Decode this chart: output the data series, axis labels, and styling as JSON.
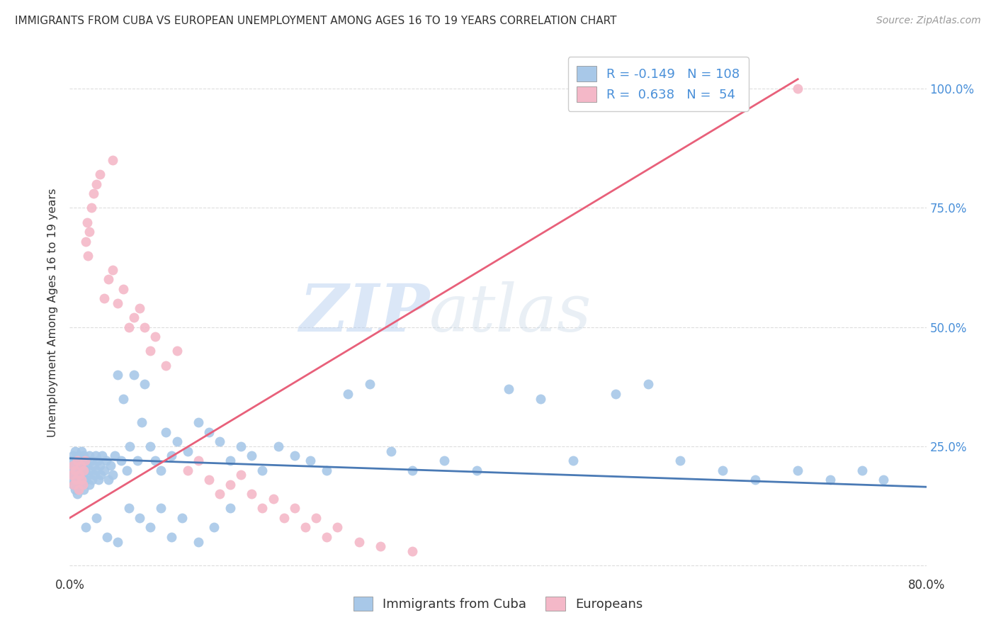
{
  "title": "IMMIGRANTS FROM CUBA VS EUROPEAN UNEMPLOYMENT AMONG AGES 16 TO 19 YEARS CORRELATION CHART",
  "source": "Source: ZipAtlas.com",
  "ylabel": "Unemployment Among Ages 16 to 19 years",
  "xlim": [
    0.0,
    0.8
  ],
  "ylim": [
    -0.02,
    1.08
  ],
  "legend_labels": [
    "Immigrants from Cuba",
    "Europeans"
  ],
  "legend_r_cuba": "-0.149",
  "legend_n_cuba": "108",
  "legend_r_euro": "0.638",
  "legend_n_euro": "54",
  "color_cuba": "#a8c8e8",
  "color_euro": "#f4b8c8",
  "color_line_cuba": "#4a7ab5",
  "color_line_euro": "#e8607a",
  "color_text_blue": "#4a90d9",
  "background_color": "#ffffff",
  "grid_color": "#dddddd",
  "watermark_zip": "ZIP",
  "watermark_atlas": "atlas",
  "cuba_x": [
    0.001,
    0.002,
    0.002,
    0.003,
    0.003,
    0.004,
    0.004,
    0.005,
    0.005,
    0.006,
    0.006,
    0.007,
    0.007,
    0.008,
    0.008,
    0.009,
    0.009,
    0.01,
    0.01,
    0.011,
    0.011,
    0.012,
    0.012,
    0.013,
    0.013,
    0.014,
    0.015,
    0.015,
    0.016,
    0.017,
    0.018,
    0.018,
    0.019,
    0.02,
    0.021,
    0.022,
    0.023,
    0.024,
    0.025,
    0.026,
    0.027,
    0.028,
    0.029,
    0.03,
    0.032,
    0.034,
    0.036,
    0.038,
    0.04,
    0.042,
    0.045,
    0.048,
    0.05,
    0.053,
    0.056,
    0.06,
    0.063,
    0.067,
    0.07,
    0.075,
    0.08,
    0.085,
    0.09,
    0.095,
    0.1,
    0.11,
    0.12,
    0.13,
    0.14,
    0.15,
    0.16,
    0.17,
    0.18,
    0.195,
    0.21,
    0.225,
    0.24,
    0.26,
    0.28,
    0.3,
    0.32,
    0.35,
    0.38,
    0.41,
    0.44,
    0.47,
    0.51,
    0.54,
    0.57,
    0.61,
    0.64,
    0.68,
    0.71,
    0.74,
    0.76,
    0.015,
    0.025,
    0.035,
    0.045,
    0.055,
    0.065,
    0.075,
    0.085,
    0.095,
    0.105,
    0.12,
    0.135,
    0.15
  ],
  "cuba_y": [
    0.2,
    0.22,
    0.18,
    0.17,
    0.23,
    0.19,
    0.21,
    0.16,
    0.24,
    0.2,
    0.18,
    0.22,
    0.15,
    0.21,
    0.19,
    0.23,
    0.17,
    0.2,
    0.22,
    0.18,
    0.24,
    0.19,
    0.21,
    0.16,
    0.23,
    0.2,
    0.22,
    0.18,
    0.21,
    0.19,
    0.23,
    0.17,
    0.2,
    0.22,
    0.18,
    0.21,
    0.19,
    0.23,
    0.2,
    0.22,
    0.18,
    0.21,
    0.19,
    0.23,
    0.2,
    0.22,
    0.18,
    0.21,
    0.19,
    0.23,
    0.4,
    0.22,
    0.35,
    0.2,
    0.25,
    0.4,
    0.22,
    0.3,
    0.38,
    0.25,
    0.22,
    0.2,
    0.28,
    0.23,
    0.26,
    0.24,
    0.3,
    0.28,
    0.26,
    0.22,
    0.25,
    0.23,
    0.2,
    0.25,
    0.23,
    0.22,
    0.2,
    0.36,
    0.38,
    0.24,
    0.2,
    0.22,
    0.2,
    0.37,
    0.35,
    0.22,
    0.36,
    0.38,
    0.22,
    0.2,
    0.18,
    0.2,
    0.18,
    0.2,
    0.18,
    0.08,
    0.1,
    0.06,
    0.05,
    0.12,
    0.1,
    0.08,
    0.12,
    0.06,
    0.1,
    0.05,
    0.08,
    0.12
  ],
  "euro_x": [
    0.002,
    0.003,
    0.004,
    0.005,
    0.006,
    0.007,
    0.008,
    0.009,
    0.01,
    0.011,
    0.012,
    0.013,
    0.014,
    0.015,
    0.016,
    0.017,
    0.018,
    0.02,
    0.022,
    0.025,
    0.028,
    0.032,
    0.036,
    0.04,
    0.045,
    0.05,
    0.055,
    0.06,
    0.065,
    0.07,
    0.075,
    0.08,
    0.09,
    0.1,
    0.11,
    0.12,
    0.13,
    0.14,
    0.15,
    0.16,
    0.17,
    0.18,
    0.19,
    0.2,
    0.21,
    0.22,
    0.23,
    0.24,
    0.25,
    0.27,
    0.29,
    0.32,
    0.68,
    0.04
  ],
  "euro_y": [
    0.19,
    0.21,
    0.17,
    0.2,
    0.18,
    0.22,
    0.16,
    0.19,
    0.21,
    0.18,
    0.17,
    0.2,
    0.22,
    0.68,
    0.72,
    0.65,
    0.7,
    0.75,
    0.78,
    0.8,
    0.82,
    0.56,
    0.6,
    0.62,
    0.55,
    0.58,
    0.5,
    0.52,
    0.54,
    0.5,
    0.45,
    0.48,
    0.42,
    0.45,
    0.2,
    0.22,
    0.18,
    0.15,
    0.17,
    0.19,
    0.15,
    0.12,
    0.14,
    0.1,
    0.12,
    0.08,
    0.1,
    0.06,
    0.08,
    0.05,
    0.04,
    0.03,
    1.0,
    0.85
  ],
  "cuba_line_x": [
    0.0,
    0.8
  ],
  "cuba_line_y": [
    0.225,
    0.165
  ],
  "euro_line_x": [
    0.0,
    0.68
  ],
  "euro_line_y": [
    0.1,
    1.02
  ]
}
